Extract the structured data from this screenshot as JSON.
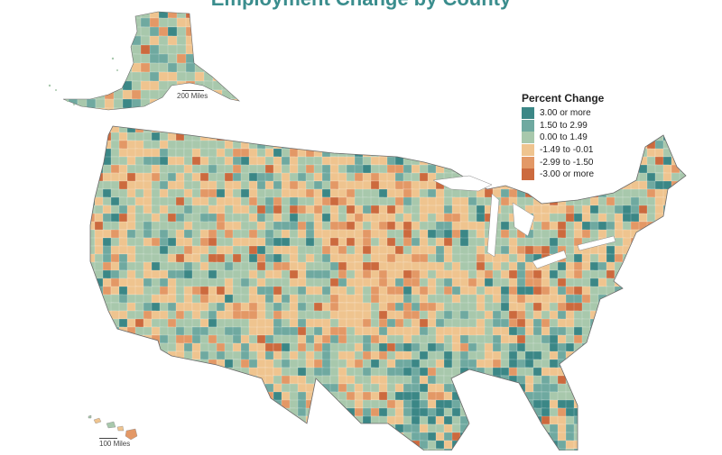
{
  "map": {
    "title": "Employment Change by County"
  },
  "legend": {
    "title": "Percent Change",
    "items": [
      {
        "label": "3.00 or more",
        "color": "#3b8786"
      },
      {
        "label": "1.50 to 2.99",
        "color": "#6fa9a0"
      },
      {
        "label": "0.00 to 1.49",
        "color": "#a8c8ac"
      },
      {
        "label": "-1.49 to -0.01",
        "color": "#efc48f"
      },
      {
        "label": "-2.99 to -1.50",
        "color": "#e39866"
      },
      {
        "label": "-3.00 or more",
        "color": "#cc6a3e"
      }
    ]
  },
  "scales": {
    "alaska": "200 Miles",
    "hawaii": "100 Miles"
  }
}
